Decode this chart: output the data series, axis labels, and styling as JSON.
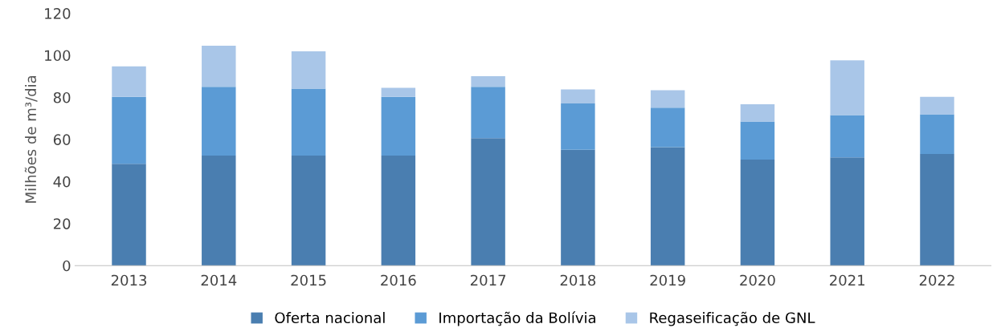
{
  "chart_data": {
    "type": "bar",
    "stacked": true,
    "ylabel": "Milhões de m³/dia",
    "categories": [
      "2013",
      "2014",
      "2015",
      "2016",
      "2017",
      "2018",
      "2019",
      "2020",
      "2021",
      "2022"
    ],
    "series": [
      {
        "name": "Oferta nacional",
        "color": "#4a7eb0",
        "values": [
          48.4,
          52.3,
          52.3,
          52.3,
          60.6,
          55.1,
          56.3,
          50.4,
          51.5,
          53.1
        ]
      },
      {
        "name": "Importação da Bolívia",
        "color": "#5b9bd5",
        "values": [
          31.9,
          32.7,
          31.9,
          28,
          24.4,
          22,
          18.8,
          18.1,
          20.1,
          18.9
        ]
      },
      {
        "name": "Regaseificação de GNL",
        "color": "#a9c6e8",
        "values": [
          14.5,
          19.6,
          17.7,
          4.3,
          5.1,
          6.7,
          8.3,
          8.2,
          26,
          8.3
        ]
      }
    ],
    "ylim": [
      0,
      120
    ],
    "yticks": [
      0,
      20,
      40,
      60,
      80,
      100,
      120
    ],
    "grid": false,
    "legend": "bottom"
  }
}
